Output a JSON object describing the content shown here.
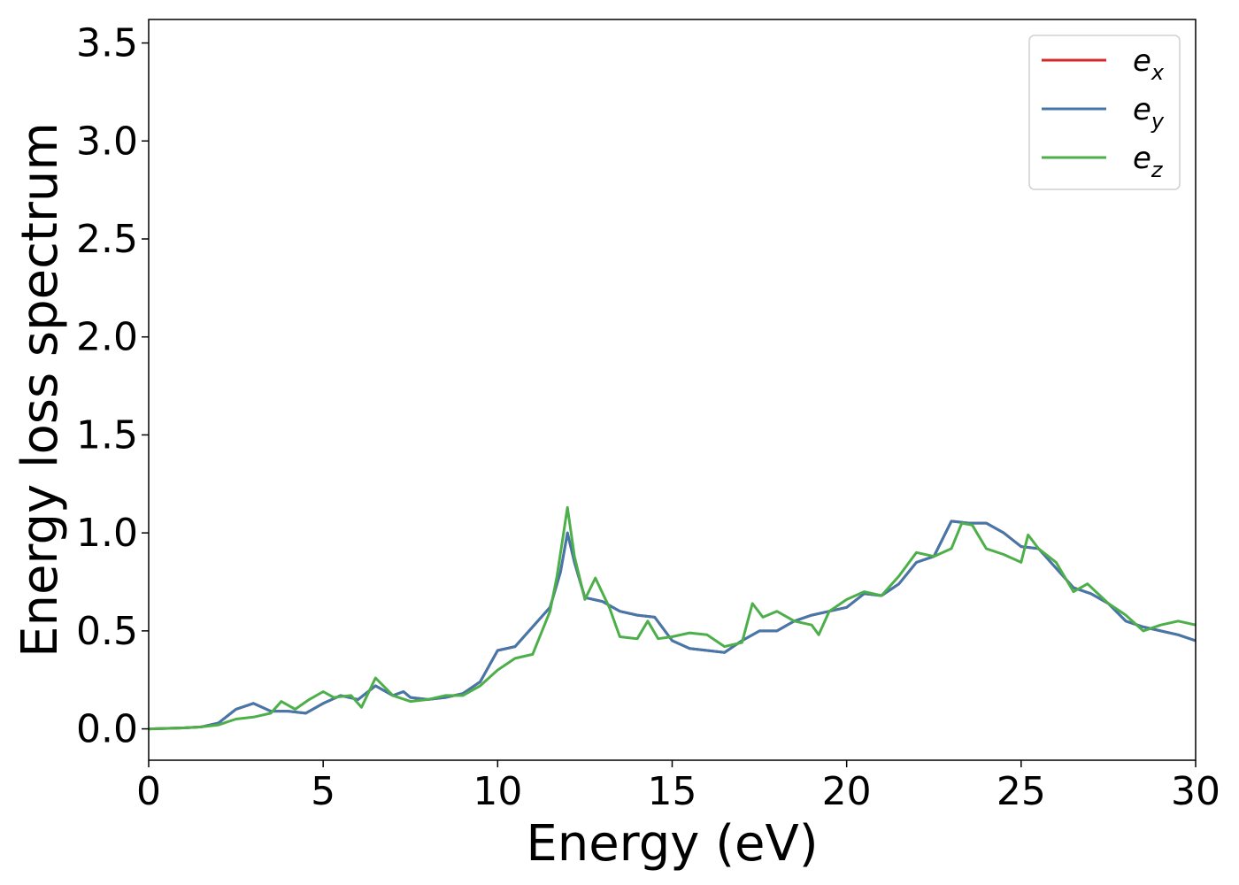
{
  "chart_data": {
    "type": "line",
    "title": "",
    "xlabel": "Energy (eV)",
    "ylabel": "Energy loss spectrum",
    "xlim": [
      0,
      30
    ],
    "ylim": [
      -0.16,
      3.62
    ],
    "xticks": [
      0,
      5,
      10,
      15,
      20,
      25,
      30
    ],
    "xtick_labels": [
      "0",
      "5",
      "10",
      "15",
      "20",
      "25",
      "30"
    ],
    "yticks": [
      0.0,
      0.5,
      1.0,
      1.5,
      2.0,
      2.5,
      3.0,
      3.5
    ],
    "ytick_labels": [
      "0.0",
      "0.5",
      "1.0",
      "1.5",
      "2.0",
      "2.5",
      "3.0",
      "3.5"
    ],
    "grid": false,
    "legend_position": "top-right",
    "series": [
      {
        "name": "e_x",
        "label_base": "e",
        "label_sub": "x",
        "color": "#d62728",
        "points": [
          [
            0,
            0.0
          ],
          [
            1,
            0.005
          ],
          [
            1.5,
            0.01
          ],
          [
            2,
            0.03
          ],
          [
            2.5,
            0.1
          ],
          [
            3,
            0.13
          ],
          [
            3.5,
            0.09
          ],
          [
            4,
            0.09
          ],
          [
            4.5,
            0.08
          ],
          [
            5,
            0.13
          ],
          [
            5.5,
            0.17
          ],
          [
            6,
            0.15
          ],
          [
            6.5,
            0.22
          ],
          [
            7,
            0.17
          ],
          [
            7.3,
            0.19
          ],
          [
            7.5,
            0.16
          ],
          [
            8,
            0.15
          ],
          [
            8.5,
            0.16
          ],
          [
            9,
            0.18
          ],
          [
            9.5,
            0.24
          ],
          [
            10,
            0.4
          ],
          [
            10.5,
            0.42
          ],
          [
            11,
            0.52
          ],
          [
            11.5,
            0.62
          ],
          [
            11.8,
            0.8
          ],
          [
            12,
            1.0
          ],
          [
            12.2,
            0.85
          ],
          [
            12.5,
            0.67
          ],
          [
            13,
            0.65
          ],
          [
            13.5,
            0.6
          ],
          [
            14,
            0.58
          ],
          [
            14.5,
            0.57
          ],
          [
            15,
            0.45
          ],
          [
            15.5,
            0.41
          ],
          [
            16,
            0.4
          ],
          [
            16.5,
            0.39
          ],
          [
            17,
            0.45
          ],
          [
            17.5,
            0.5
          ],
          [
            18,
            0.5
          ],
          [
            18.5,
            0.55
          ],
          [
            19,
            0.58
          ],
          [
            19.5,
            0.6
          ],
          [
            20,
            0.62
          ],
          [
            20.5,
            0.69
          ],
          [
            21,
            0.68
          ],
          [
            21.5,
            0.74
          ],
          [
            22,
            0.85
          ],
          [
            22.5,
            0.88
          ],
          [
            23,
            1.06
          ],
          [
            23.5,
            1.05
          ],
          [
            24,
            1.05
          ],
          [
            24.5,
            1.0
          ],
          [
            25,
            0.93
          ],
          [
            25.5,
            0.92
          ],
          [
            26,
            0.82
          ],
          [
            26.5,
            0.72
          ],
          [
            27,
            0.69
          ],
          [
            27.5,
            0.64
          ],
          [
            28,
            0.55
          ],
          [
            28.5,
            0.52
          ],
          [
            29,
            0.5
          ],
          [
            29.5,
            0.48
          ],
          [
            30,
            0.45
          ]
        ]
      },
      {
        "name": "e_y",
        "label_base": "e",
        "label_sub": "y",
        "color": "#4477aa",
        "points": [
          [
            0,
            0.0
          ],
          [
            1,
            0.005
          ],
          [
            1.5,
            0.01
          ],
          [
            2,
            0.03
          ],
          [
            2.5,
            0.1
          ],
          [
            3,
            0.13
          ],
          [
            3.5,
            0.09
          ],
          [
            4,
            0.09
          ],
          [
            4.5,
            0.08
          ],
          [
            5,
            0.13
          ],
          [
            5.5,
            0.17
          ],
          [
            6,
            0.15
          ],
          [
            6.5,
            0.22
          ],
          [
            7,
            0.17
          ],
          [
            7.3,
            0.19
          ],
          [
            7.5,
            0.16
          ],
          [
            8,
            0.15
          ],
          [
            8.5,
            0.16
          ],
          [
            9,
            0.18
          ],
          [
            9.5,
            0.24
          ],
          [
            10,
            0.4
          ],
          [
            10.5,
            0.42
          ],
          [
            11,
            0.52
          ],
          [
            11.5,
            0.62
          ],
          [
            11.8,
            0.8
          ],
          [
            12,
            1.0
          ],
          [
            12.2,
            0.85
          ],
          [
            12.5,
            0.67
          ],
          [
            13,
            0.65
          ],
          [
            13.5,
            0.6
          ],
          [
            14,
            0.58
          ],
          [
            14.5,
            0.57
          ],
          [
            15,
            0.45
          ],
          [
            15.5,
            0.41
          ],
          [
            16,
            0.4
          ],
          [
            16.5,
            0.39
          ],
          [
            17,
            0.45
          ],
          [
            17.5,
            0.5
          ],
          [
            18,
            0.5
          ],
          [
            18.5,
            0.55
          ],
          [
            19,
            0.58
          ],
          [
            19.5,
            0.6
          ],
          [
            20,
            0.62
          ],
          [
            20.5,
            0.69
          ],
          [
            21,
            0.68
          ],
          [
            21.5,
            0.74
          ],
          [
            22,
            0.85
          ],
          [
            22.5,
            0.88
          ],
          [
            23,
            1.06
          ],
          [
            23.5,
            1.05
          ],
          [
            24,
            1.05
          ],
          [
            24.5,
            1.0
          ],
          [
            25,
            0.93
          ],
          [
            25.5,
            0.92
          ],
          [
            26,
            0.82
          ],
          [
            26.5,
            0.72
          ],
          [
            27,
            0.69
          ],
          [
            27.5,
            0.64
          ],
          [
            28,
            0.55
          ],
          [
            28.5,
            0.52
          ],
          [
            29,
            0.5
          ],
          [
            29.5,
            0.48
          ],
          [
            30,
            0.45
          ]
        ]
      },
      {
        "name": "e_z",
        "label_base": "e",
        "label_sub": "z",
        "color": "#4daf4a",
        "points": [
          [
            0,
            0.0
          ],
          [
            1,
            0.005
          ],
          [
            1.5,
            0.01
          ],
          [
            2,
            0.02
          ],
          [
            2.5,
            0.05
          ],
          [
            3,
            0.06
          ],
          [
            3.5,
            0.08
          ],
          [
            3.8,
            0.14
          ],
          [
            4.2,
            0.1
          ],
          [
            4.6,
            0.15
          ],
          [
            5,
            0.19
          ],
          [
            5.3,
            0.16
          ],
          [
            5.8,
            0.17
          ],
          [
            6.1,
            0.11
          ],
          [
            6.5,
            0.26
          ],
          [
            7,
            0.17
          ],
          [
            7.5,
            0.14
          ],
          [
            8,
            0.15
          ],
          [
            8.5,
            0.17
          ],
          [
            9,
            0.17
          ],
          [
            9.5,
            0.22
          ],
          [
            10,
            0.3
          ],
          [
            10.5,
            0.36
          ],
          [
            11,
            0.38
          ],
          [
            11.5,
            0.6
          ],
          [
            11.7,
            0.78
          ],
          [
            12,
            1.13
          ],
          [
            12.2,
            0.88
          ],
          [
            12.5,
            0.66
          ],
          [
            12.8,
            0.77
          ],
          [
            13.2,
            0.62
          ],
          [
            13.5,
            0.47
          ],
          [
            14,
            0.46
          ],
          [
            14.3,
            0.55
          ],
          [
            14.6,
            0.46
          ],
          [
            15,
            0.47
          ],
          [
            15.5,
            0.49
          ],
          [
            16,
            0.48
          ],
          [
            16.5,
            0.42
          ],
          [
            17,
            0.44
          ],
          [
            17.3,
            0.64
          ],
          [
            17.6,
            0.57
          ],
          [
            18,
            0.6
          ],
          [
            18.5,
            0.55
          ],
          [
            19,
            0.53
          ],
          [
            19.2,
            0.48
          ],
          [
            19.5,
            0.6
          ],
          [
            20,
            0.66
          ],
          [
            20.5,
            0.7
          ],
          [
            21,
            0.68
          ],
          [
            21.5,
            0.78
          ],
          [
            22,
            0.9
          ],
          [
            22.5,
            0.88
          ],
          [
            23,
            0.92
          ],
          [
            23.3,
            1.05
          ],
          [
            23.6,
            1.04
          ],
          [
            24,
            0.92
          ],
          [
            24.5,
            0.89
          ],
          [
            25,
            0.85
          ],
          [
            25.2,
            0.99
          ],
          [
            25.5,
            0.92
          ],
          [
            26,
            0.85
          ],
          [
            26.5,
            0.7
          ],
          [
            26.9,
            0.74
          ],
          [
            27.5,
            0.64
          ],
          [
            28,
            0.58
          ],
          [
            28.5,
            0.5
          ],
          [
            29,
            0.53
          ],
          [
            29.5,
            0.55
          ],
          [
            30,
            0.53
          ]
        ]
      }
    ]
  }
}
